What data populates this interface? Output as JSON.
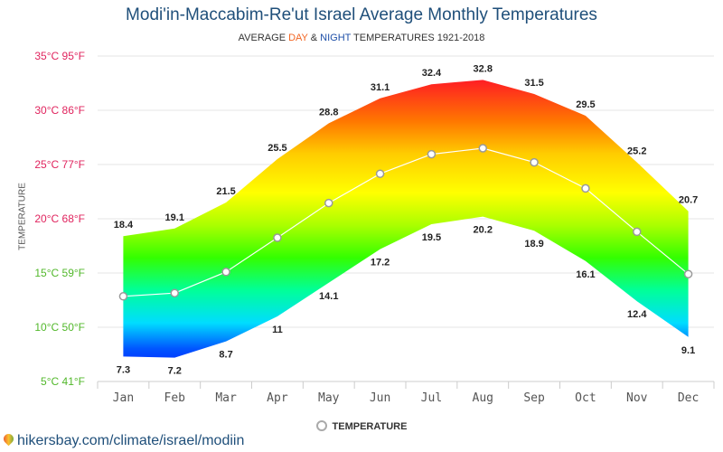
{
  "title": "Modi'in-Maccabim-Re'ut Israel Average Monthly Temperatures",
  "subtitle": {
    "prefix": "AVERAGE ",
    "day": "DAY",
    "amp": " & ",
    "night": "NIGHT",
    "suffix": " TEMPERATURES 1921-2018"
  },
  "source": "hikersbay.com/climate/israel/modiin",
  "colors": {
    "title": "#1f4f7a",
    "day": "#f26522",
    "night": "#1e4fa8"
  },
  "chart_data": {
    "type": "area",
    "title": "Modi'in-Maccabim-Re'ut Israel Average Monthly Temperatures",
    "subtitle": "AVERAGE DAY & NIGHT TEMPERATURES 1921-2018",
    "xlabel": "",
    "ylabel": "TEMPERATURE",
    "ylim": [
      5,
      35
    ],
    "grid": true,
    "legend": "bottom-center",
    "categories": [
      "Jan",
      "Feb",
      "Mar",
      "Apr",
      "May",
      "Jun",
      "Jul",
      "Aug",
      "Sep",
      "Oct",
      "Nov",
      "Dec"
    ],
    "y_ticks": [
      {
        "value": 35,
        "label": "35°C 95°F"
      },
      {
        "value": 30,
        "label": "30°C 86°F"
      },
      {
        "value": 25,
        "label": "25°C 77°F"
      },
      {
        "value": 20,
        "label": "20°C 68°F"
      },
      {
        "value": 15,
        "label": "15°C 59°F"
      },
      {
        "value": 10,
        "label": "10°C 50°F"
      },
      {
        "value": 5,
        "label": "5°C 41°F"
      }
    ],
    "day": [
      18.4,
      19.1,
      21.5,
      25.5,
      28.8,
      31.1,
      32.4,
      32.8,
      31.5,
      29.5,
      25.2,
      20.7
    ],
    "night": [
      7.3,
      7.2,
      8.7,
      11,
      14.1,
      17.2,
      19.5,
      20.2,
      18.9,
      16.1,
      12.4,
      9.1
    ],
    "series": [
      {
        "name": "TEMPERATURE",
        "values": [
          12.85,
          13.15,
          15.1,
          18.25,
          21.45,
          24.15,
          25.95,
          26.5,
          25.2,
          22.8,
          18.8,
          14.9
        ]
      }
    ]
  }
}
